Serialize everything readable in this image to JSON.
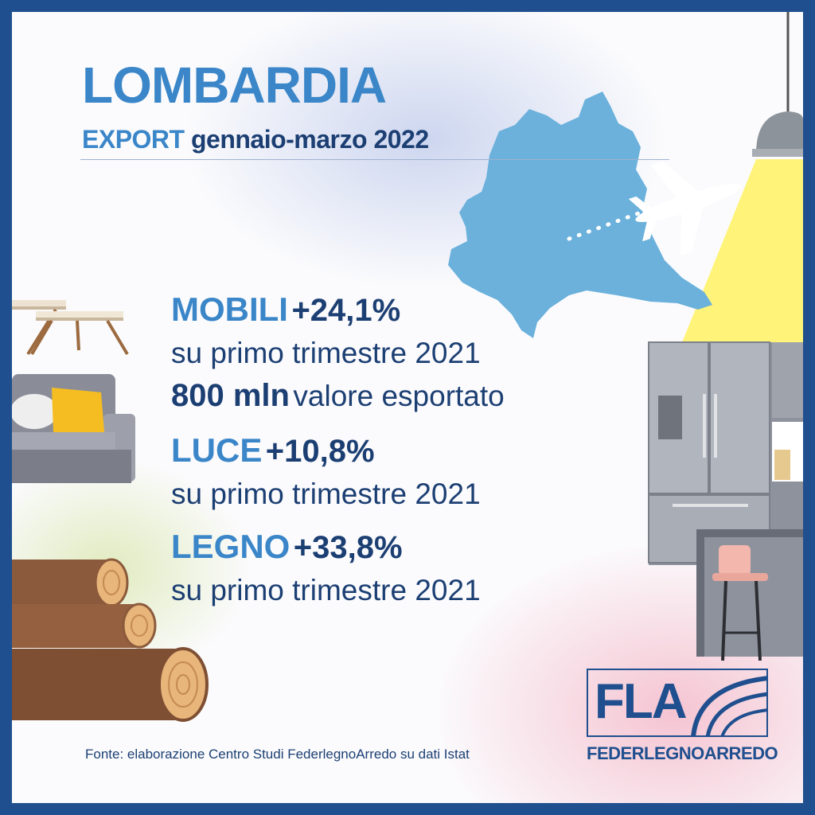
{
  "header": {
    "title": "LOMBARDIA",
    "subtitle_export": "EXPORT",
    "subtitle_period": "gennaio-marzo 2022"
  },
  "stats": {
    "mobili": {
      "category": "MOBILI",
      "change": "+24,1%",
      "comparison": "su primo trimestre 2021",
      "value_bold": "800 mln",
      "value_text": "valore esportato"
    },
    "luce": {
      "category": "LUCE",
      "change": "+10,8%",
      "comparison": "su primo trimestre 2021"
    },
    "legno": {
      "category": "LEGNO",
      "change": "+33,8%",
      "comparison": "su primo trimestre 2021"
    }
  },
  "source": "Fonte: elaborazione Centro Studi FederlegnoArredo su dati Istat",
  "logo": {
    "letters": "FLA",
    "wordmark": "FEDERLEGNOARREDO"
  },
  "colors": {
    "frame": "#1f4f8e",
    "accent_blue": "#3a86c8",
    "dark_blue": "#1c3f73",
    "map": "#6bb1dc",
    "lamp_light": "#fff36a"
  },
  "icons": [
    "lombardia-map-icon",
    "airplane-icon",
    "ceiling-lamp-icon",
    "coffee-table-icon",
    "sofa-icon",
    "logs-icon",
    "refrigerator-icon",
    "bar-stool-icon"
  ]
}
